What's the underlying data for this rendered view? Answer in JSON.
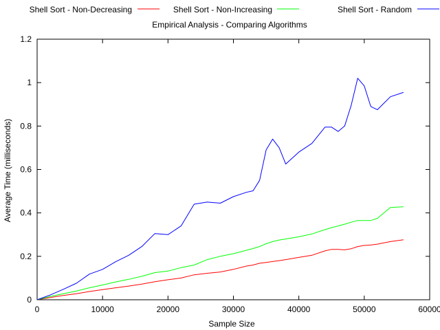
{
  "chart_data": {
    "type": "line",
    "title": "Empirical Analysis - Comparing Algorithms",
    "xlabel": "Sample Size",
    "ylabel": "Average Time (milliseconds)",
    "xlim": [
      0,
      60000
    ],
    "ylim": [
      0,
      1.2
    ],
    "xticks": [
      0,
      10000,
      20000,
      30000,
      40000,
      50000,
      60000
    ],
    "yticks": [
      0,
      0.2,
      0.4,
      0.6,
      0.8,
      1,
      1.2
    ],
    "xtick_labels": [
      "0",
      "10000",
      "20000",
      "30000",
      "40000",
      "50000",
      "60000"
    ],
    "ytick_labels": [
      "0",
      "0.2",
      "0.4",
      "0.6",
      "0.8",
      "1",
      "1.2"
    ],
    "grid": false,
    "legend_position": "top",
    "x": [
      0,
      2000,
      4000,
      6000,
      8000,
      10000,
      12000,
      14000,
      16000,
      18000,
      20000,
      22000,
      24000,
      26000,
      28000,
      30000,
      32000,
      33000,
      34000,
      35000,
      36000,
      37000,
      38000,
      40000,
      42000,
      44000,
      45000,
      46000,
      47000,
      48000,
      49000,
      50000,
      51000,
      52000,
      54000,
      56000
    ],
    "series": [
      {
        "name": "Shell Sort - Non-Decreasing",
        "color": "#ff0000",
        "values": [
          0.0,
          0.01,
          0.02,
          0.028,
          0.038,
          0.047,
          0.055,
          0.063,
          0.072,
          0.083,
          0.092,
          0.1,
          0.115,
          0.122,
          0.128,
          0.14,
          0.155,
          0.16,
          0.168,
          0.172,
          0.176,
          0.18,
          0.185,
          0.195,
          0.205,
          0.225,
          0.232,
          0.232,
          0.23,
          0.235,
          0.245,
          0.25,
          0.252,
          0.256,
          0.268,
          0.276
        ]
      },
      {
        "name": "Shell Sort - Non-Increasing",
        "color": "#00ff00",
        "values": [
          0.0,
          0.015,
          0.028,
          0.04,
          0.055,
          0.068,
          0.082,
          0.094,
          0.108,
          0.125,
          0.132,
          0.148,
          0.16,
          0.185,
          0.2,
          0.212,
          0.228,
          0.236,
          0.245,
          0.258,
          0.268,
          0.275,
          0.28,
          0.29,
          0.303,
          0.323,
          0.332,
          0.34,
          0.348,
          0.357,
          0.365,
          0.365,
          0.365,
          0.375,
          0.425,
          0.428
        ]
      },
      {
        "name": "Shell Sort - Random",
        "color": "#0000ff",
        "values": [
          0.0,
          0.022,
          0.048,
          0.076,
          0.118,
          0.14,
          0.175,
          0.205,
          0.245,
          0.305,
          0.3,
          0.34,
          0.44,
          0.45,
          0.445,
          0.475,
          0.495,
          0.502,
          0.55,
          0.69,
          0.74,
          0.7,
          0.625,
          0.68,
          0.72,
          0.795,
          0.795,
          0.775,
          0.8,
          0.895,
          1.02,
          0.985,
          0.89,
          0.875,
          0.935,
          0.955
        ]
      }
    ]
  }
}
